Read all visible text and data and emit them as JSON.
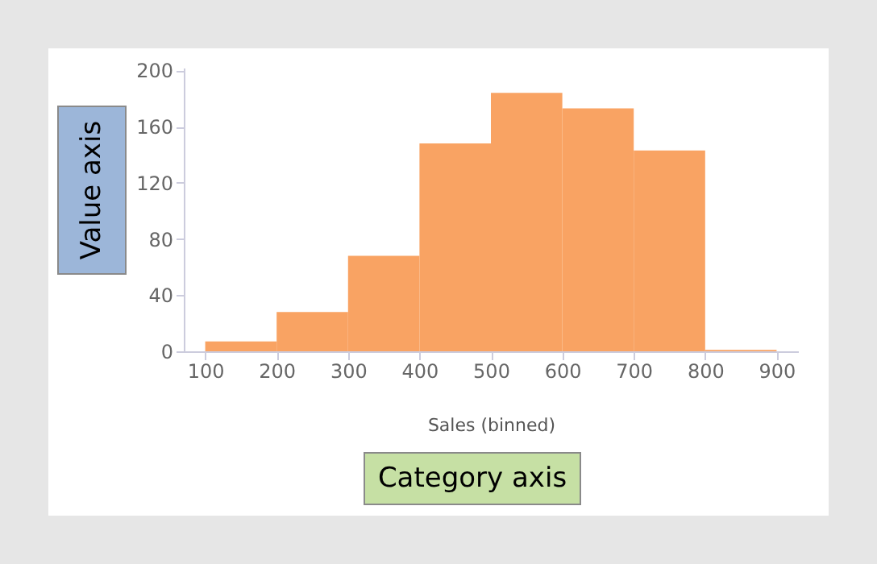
{
  "chart_data": {
    "type": "histogram",
    "xlabel": "Sales (binned)",
    "bins": [
      100,
      200,
      300,
      400,
      500,
      600,
      700,
      800,
      900
    ],
    "values": [
      7,
      28,
      68,
      148,
      184,
      173,
      143,
      1
    ],
    "color": "#f9a363",
    "xlim": [
      70,
      930
    ],
    "xticks": [
      100,
      200,
      300,
      400,
      500,
      600,
      700,
      800,
      900
    ],
    "ylim": [
      0,
      202
    ],
    "yticks": [
      0,
      40,
      80,
      120,
      160,
      200
    ],
    "grid": false,
    "annotations": [
      "Value axis",
      "Category axis"
    ]
  }
}
